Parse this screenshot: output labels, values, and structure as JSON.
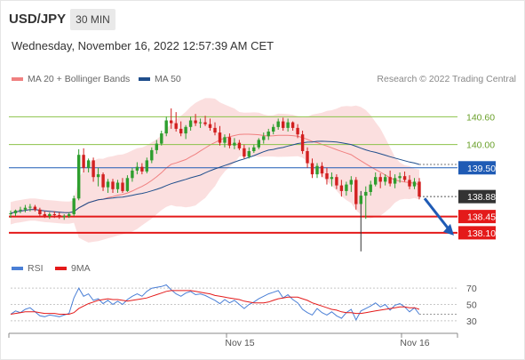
{
  "header": {
    "symbol": "USD/JPY",
    "timeframe": "30 MIN",
    "timestamp": "Wednesday, November 16, 2022 12:57:39 AM CET"
  },
  "legend": {
    "bollinger_label": "MA 20 + Bollinger Bands",
    "bollinger_color": "#f08080",
    "ma50_label": "MA 50",
    "ma50_color": "#1f4e8c",
    "credit": "Research © 2022 Trading Central"
  },
  "rsi_legend": {
    "rsi_label": "RSI",
    "rsi_color": "#4a7fd6",
    "ma9_label": "9MA",
    "ma9_color": "#e41a1a"
  },
  "chart_data": [
    {
      "type": "candlestick",
      "ylim": [
        137.6,
        141.2
      ],
      "x_tick_labels": [
        "Nov 15",
        "Nov 16"
      ],
      "price_levels": [
        {
          "label": "140.60",
          "value": 140.6,
          "kind": "resistance",
          "color": "#8bc34a"
        },
        {
          "label": "140.00",
          "value": 140.0,
          "kind": "resistance",
          "color": "#8bc34a"
        },
        {
          "label": "139.50",
          "value": 139.5,
          "kind": "pivot",
          "color": "#1f5bb5"
        },
        {
          "label": "138.88",
          "value": 138.88,
          "kind": "last",
          "color": "#333333"
        },
        {
          "label": "138.45",
          "value": 138.45,
          "kind": "support",
          "color": "#e41a1a"
        },
        {
          "label": "138.10",
          "value": 138.1,
          "kind": "support",
          "color": "#e41a1a"
        }
      ],
      "candles_ohlc": [
        [
          138.5,
          138.58,
          138.42,
          138.52
        ],
        [
          138.52,
          138.6,
          138.46,
          138.58
        ],
        [
          138.58,
          138.66,
          138.52,
          138.6
        ],
        [
          138.6,
          138.7,
          138.54,
          138.64
        ],
        [
          138.64,
          138.72,
          138.56,
          138.66
        ],
        [
          138.66,
          138.7,
          138.56,
          138.6
        ],
        [
          138.6,
          138.64,
          138.44,
          138.5
        ],
        [
          138.5,
          138.56,
          138.42,
          138.46
        ],
        [
          138.46,
          138.54,
          138.4,
          138.5
        ],
        [
          138.5,
          138.56,
          138.42,
          138.48
        ],
        [
          138.48,
          138.54,
          138.4,
          138.44
        ],
        [
          138.44,
          138.5,
          138.38,
          138.46
        ],
        [
          138.46,
          138.54,
          138.42,
          138.5
        ],
        [
          138.5,
          138.9,
          138.46,
          138.84
        ],
        [
          138.84,
          139.9,
          138.8,
          139.78
        ],
        [
          139.78,
          139.92,
          139.4,
          139.5
        ],
        [
          139.5,
          139.7,
          139.4,
          139.66
        ],
        [
          139.66,
          139.72,
          139.2,
          139.3
        ],
        [
          139.3,
          139.5,
          139.1,
          139.36
        ],
        [
          139.36,
          139.4,
          139.0,
          139.08
        ],
        [
          139.08,
          139.26,
          138.96,
          139.2
        ],
        [
          139.2,
          139.26,
          138.96,
          139.04
        ],
        [
          139.04,
          139.24,
          138.96,
          139.18
        ],
        [
          139.18,
          139.28,
          138.96,
          139.0
        ],
        [
          139.0,
          139.34,
          138.98,
          139.28
        ],
        [
          139.28,
          139.5,
          139.2,
          139.44
        ],
        [
          139.44,
          139.62,
          139.36,
          139.52
        ],
        [
          139.52,
          139.6,
          139.36,
          139.42
        ],
        [
          139.42,
          139.72,
          139.38,
          139.66
        ],
        [
          139.66,
          139.94,
          139.6,
          139.88
        ],
        [
          139.88,
          140.1,
          139.8,
          140.02
        ],
        [
          140.02,
          140.3,
          139.98,
          140.24
        ],
        [
          140.24,
          140.6,
          140.18,
          140.52
        ],
        [
          140.52,
          140.78,
          140.34,
          140.46
        ],
        [
          140.46,
          140.7,
          140.28,
          140.34
        ],
        [
          140.34,
          140.5,
          140.18,
          140.24
        ],
        [
          140.24,
          140.42,
          140.12,
          140.38
        ],
        [
          140.38,
          140.6,
          140.3,
          140.52
        ],
        [
          140.52,
          140.66,
          140.4,
          140.46
        ],
        [
          140.46,
          140.56,
          140.36,
          140.48
        ],
        [
          140.48,
          140.62,
          140.4,
          140.44
        ],
        [
          140.44,
          140.56,
          140.3,
          140.36
        ],
        [
          140.36,
          140.48,
          140.2,
          140.26
        ],
        [
          140.26,
          140.4,
          139.98,
          140.04
        ],
        [
          140.04,
          140.22,
          139.94,
          140.16
        ],
        [
          140.16,
          140.24,
          139.92,
          139.98
        ],
        [
          139.98,
          140.14,
          139.9,
          140.04
        ],
        [
          140.04,
          140.1,
          139.88,
          139.92
        ],
        [
          139.92,
          140.0,
          139.7,
          139.74
        ],
        [
          139.74,
          139.94,
          139.7,
          139.86
        ],
        [
          139.86,
          140.0,
          139.82,
          139.94
        ],
        [
          139.94,
          140.14,
          139.9,
          140.1
        ],
        [
          140.1,
          140.26,
          140.02,
          140.18
        ],
        [
          140.18,
          140.34,
          140.1,
          140.28
        ],
        [
          140.28,
          140.44,
          140.22,
          140.38
        ],
        [
          140.38,
          140.56,
          140.32,
          140.5
        ],
        [
          140.5,
          140.58,
          140.3,
          140.36
        ],
        [
          140.36,
          140.56,
          140.28,
          140.48
        ],
        [
          140.48,
          140.5,
          140.3,
          140.36
        ],
        [
          140.36,
          140.44,
          140.14,
          140.22
        ],
        [
          140.22,
          140.3,
          139.8,
          139.86
        ],
        [
          139.86,
          139.94,
          139.5,
          139.6
        ],
        [
          139.6,
          139.7,
          139.28,
          139.36
        ],
        [
          139.36,
          139.6,
          139.28,
          139.54
        ],
        [
          139.54,
          139.62,
          139.3,
          139.38
        ],
        [
          139.38,
          139.5,
          139.14,
          139.26
        ],
        [
          139.26,
          139.4,
          139.1,
          139.3
        ],
        [
          139.3,
          139.36,
          139.04,
          139.12
        ],
        [
          139.12,
          139.24,
          138.88,
          139.0
        ],
        [
          139.0,
          139.2,
          138.9,
          139.14
        ],
        [
          139.14,
          139.32,
          138.98,
          139.24
        ],
        [
          139.24,
          139.3,
          138.6,
          138.72
        ],
        [
          138.72,
          139.0,
          137.7,
          138.9
        ],
        [
          138.9,
          139.1,
          138.4,
          138.98
        ],
        [
          138.98,
          139.22,
          138.9,
          139.14
        ],
        [
          139.14,
          139.4,
          139.1,
          139.3
        ],
        [
          139.3,
          139.38,
          139.06,
          139.2
        ],
        [
          139.2,
          139.36,
          139.12,
          139.3
        ],
        [
          139.3,
          139.44,
          139.1,
          139.16
        ],
        [
          139.16,
          139.36,
          139.06,
          139.28
        ],
        [
          139.28,
          139.4,
          139.18,
          139.32
        ],
        [
          139.32,
          139.42,
          139.2,
          139.24
        ],
        [
          139.24,
          139.34,
          139.04,
          139.1
        ],
        [
          139.1,
          139.28,
          139.04,
          139.2
        ],
        [
          139.2,
          139.28,
          138.82,
          138.88
        ]
      ],
      "forecast_arrow": {
        "from": 138.88,
        "to": 138.1,
        "color": "#1f5bb5"
      }
    },
    {
      "type": "line",
      "ylim": [
        20,
        80
      ],
      "y_tick_labels": [
        "70",
        "50",
        "30"
      ],
      "y_ticks": [
        70,
        50,
        30
      ],
      "series": [
        {
          "name": "RSI",
          "color": "#4a7fd6",
          "values": [
            38,
            42,
            40,
            44,
            46,
            41,
            36,
            35,
            37,
            36,
            35,
            37,
            39,
            58,
            70,
            60,
            63,
            55,
            57,
            51,
            55,
            50,
            54,
            50,
            56,
            60,
            63,
            60,
            66,
            70,
            71,
            72,
            74,
            68,
            63,
            60,
            64,
            66,
            62,
            63,
            61,
            58,
            55,
            51,
            56,
            52,
            55,
            50,
            45,
            50,
            53,
            57,
            60,
            63,
            65,
            67,
            58,
            62,
            56,
            52,
            44,
            40,
            37,
            45,
            40,
            37,
            41,
            36,
            33,
            40,
            44,
            31,
            42,
            45,
            48,
            52,
            47,
            50,
            43,
            49,
            51,
            47,
            41,
            46,
            38
          ]
        },
        {
          "name": "9MA",
          "color": "#e41a1a",
          "values": [
            38,
            39,
            40,
            41,
            41,
            41,
            40,
            39,
            39,
            39,
            38,
            38,
            38,
            40,
            45,
            48,
            51,
            53,
            55,
            56,
            57,
            56,
            56,
            55,
            54,
            55,
            56,
            57,
            58,
            60,
            62,
            64,
            66,
            67,
            67,
            67,
            67,
            67,
            66,
            65,
            64,
            63,
            61,
            60,
            59,
            58,
            57,
            56,
            54,
            53,
            52,
            52,
            52,
            53,
            55,
            57,
            58,
            59,
            59,
            59,
            57,
            55,
            52,
            50,
            48,
            46,
            44,
            43,
            41,
            40,
            40,
            39,
            39,
            40,
            41,
            42,
            43,
            44,
            45,
            46,
            47,
            47,
            46,
            46,
            44
          ]
        }
      ],
      "reference_line": {
        "value": 38,
        "style": "dotted"
      }
    }
  ]
}
